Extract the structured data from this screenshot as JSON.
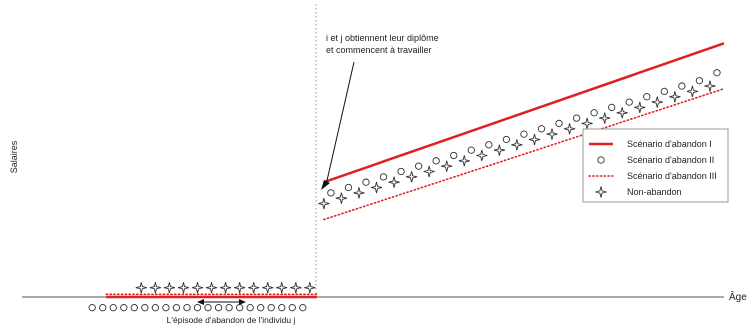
{
  "chart_data": {
    "type": "line",
    "title": "",
    "xlabel": "Âge",
    "ylabel": "Salaires",
    "grid": false,
    "legend_position": "right",
    "x_range": [
      0,
      100
    ],
    "y_range": [
      0,
      100
    ],
    "annotations": {
      "graduation": "i et j obtiennent leur diplôme\net commencent à travailler",
      "dropout_episode": "L'épisode d'abandon de l'individu j"
    },
    "legend": [
      {
        "label": "Scénario d'abandon I",
        "marker": "solid-line",
        "color": "#e02020"
      },
      {
        "label": "Scénario d'abandon II",
        "marker": "circle",
        "color": "#333333"
      },
      {
        "label": "Scénario d'abandon III",
        "marker": "dotted-line",
        "color": "#e02020"
      },
      {
        "label": "Non-abandon",
        "marker": "star",
        "color": "#333333"
      }
    ],
    "series": [
      {
        "name": "Scénario d'abandon I",
        "style": "solid",
        "color": "#e02020",
        "segments": [
          {
            "x": [
              12,
              42
            ],
            "y": [
              0,
              0
            ]
          },
          {
            "x": [
              43,
              100
            ],
            "y": [
              43,
              95
            ]
          }
        ]
      },
      {
        "name": "Scénario d'abandon II",
        "style": "circle",
        "color": "#333333",
        "segments": [
          {
            "x": [
              10,
              11.5,
              13,
              14.5,
              16,
              17.5,
              19,
              20.5,
              22,
              23.5,
              25,
              26.5,
              28,
              29.5,
              31,
              32.5,
              34,
              35.5,
              37,
              38.5,
              40
            ],
            "y": [
              -4,
              -4,
              -4,
              -4,
              -4,
              -4,
              -4,
              -4,
              -4,
              -4,
              -4,
              -4,
              -4,
              -4,
              -4,
              -4,
              -4,
              -4,
              -4,
              -4,
              -4
            ]
          },
          {
            "x": [
              44,
              46.5,
              49,
              51.5,
              54,
              56.5,
              59,
              61.5,
              64,
              66.5,
              69,
              71.5,
              74,
              76.5,
              79,
              81.5,
              84,
              86.5,
              89,
              91.5,
              94,
              96.5,
              99
            ],
            "y": [
              39,
              41,
              43,
              45,
              47,
              49,
              51,
              53,
              55,
              57,
              59,
              61,
              63,
              65,
              67,
              69,
              71,
              73,
              75,
              77,
              79,
              81,
              84
            ]
          }
        ]
      },
      {
        "name": "Scénario d'abandon III",
        "style": "dotted",
        "color": "#e02020",
        "segments": [
          {
            "x": [
              12,
              42
            ],
            "y": [
              1,
              1
            ]
          },
          {
            "x": [
              43,
              100
            ],
            "y": [
              29,
              78
            ]
          }
        ]
      },
      {
        "name": "Non-abandon",
        "style": "star",
        "color": "#333333",
        "segments": [
          {
            "x": [
              17,
              19,
              21,
              23,
              25,
              27,
              29,
              31,
              33,
              35,
              37,
              39,
              41
            ],
            "y": [
              3.5,
              3.5,
              3.5,
              3.5,
              3.5,
              3.5,
              3.5,
              3.5,
              3.5,
              3.5,
              3.5,
              3.5,
              3.5
            ]
          },
          {
            "x": [
              43,
              45.5,
              48,
              50.5,
              53,
              55.5,
              58,
              60.5,
              63,
              65.5,
              68,
              70.5,
              73,
              75.5,
              78,
              80.5,
              83,
              85.5,
              88,
              90.5,
              93,
              95.5,
              98
            ],
            "y": [
              35,
              37,
              39,
              41,
              43,
              45,
              47,
              49,
              51,
              53,
              55,
              57,
              59,
              61,
              63,
              65,
              67,
              69,
              71,
              73,
              75,
              77,
              79
            ]
          }
        ]
      }
    ]
  }
}
